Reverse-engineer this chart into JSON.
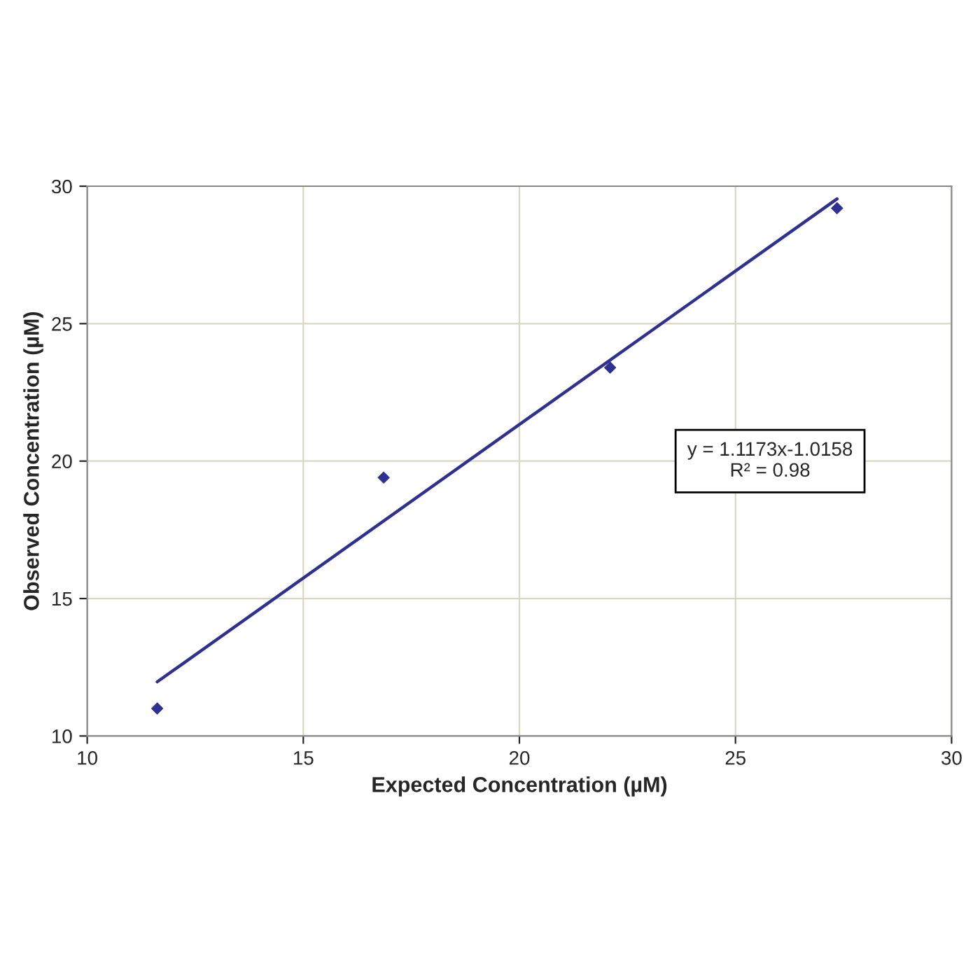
{
  "chart_data": {
    "type": "scatter",
    "xlabel": "Expected Concentration (µM)",
    "ylabel": "Observed Concentration (µM)",
    "series": [
      {
        "color": "#2e3192",
        "marker": "diamond",
        "x": [
          11.62,
          16.86,
          22.1,
          27.35
        ],
        "values": [
          11.0,
          19.4,
          23.4,
          29.2
        ]
      },
      {
        "type": "line",
        "color": "#2e3192",
        "marker": "none",
        "line_style": "solid",
        "x": [
          11.62,
          27.35
        ],
        "values": [
          11.97,
          29.54
        ]
      }
    ],
    "annotations": [
      "y = 1.1173x-1.0158\nR² = 0.98"
    ],
    "xlim": [
      10,
      30
    ],
    "xticks": [
      10,
      15,
      20,
      25,
      30
    ],
    "ylim": [
      10,
      30
    ],
    "yticks": [
      10,
      15,
      20,
      25,
      30
    ],
    "grid": true,
    "legend": false
  }
}
